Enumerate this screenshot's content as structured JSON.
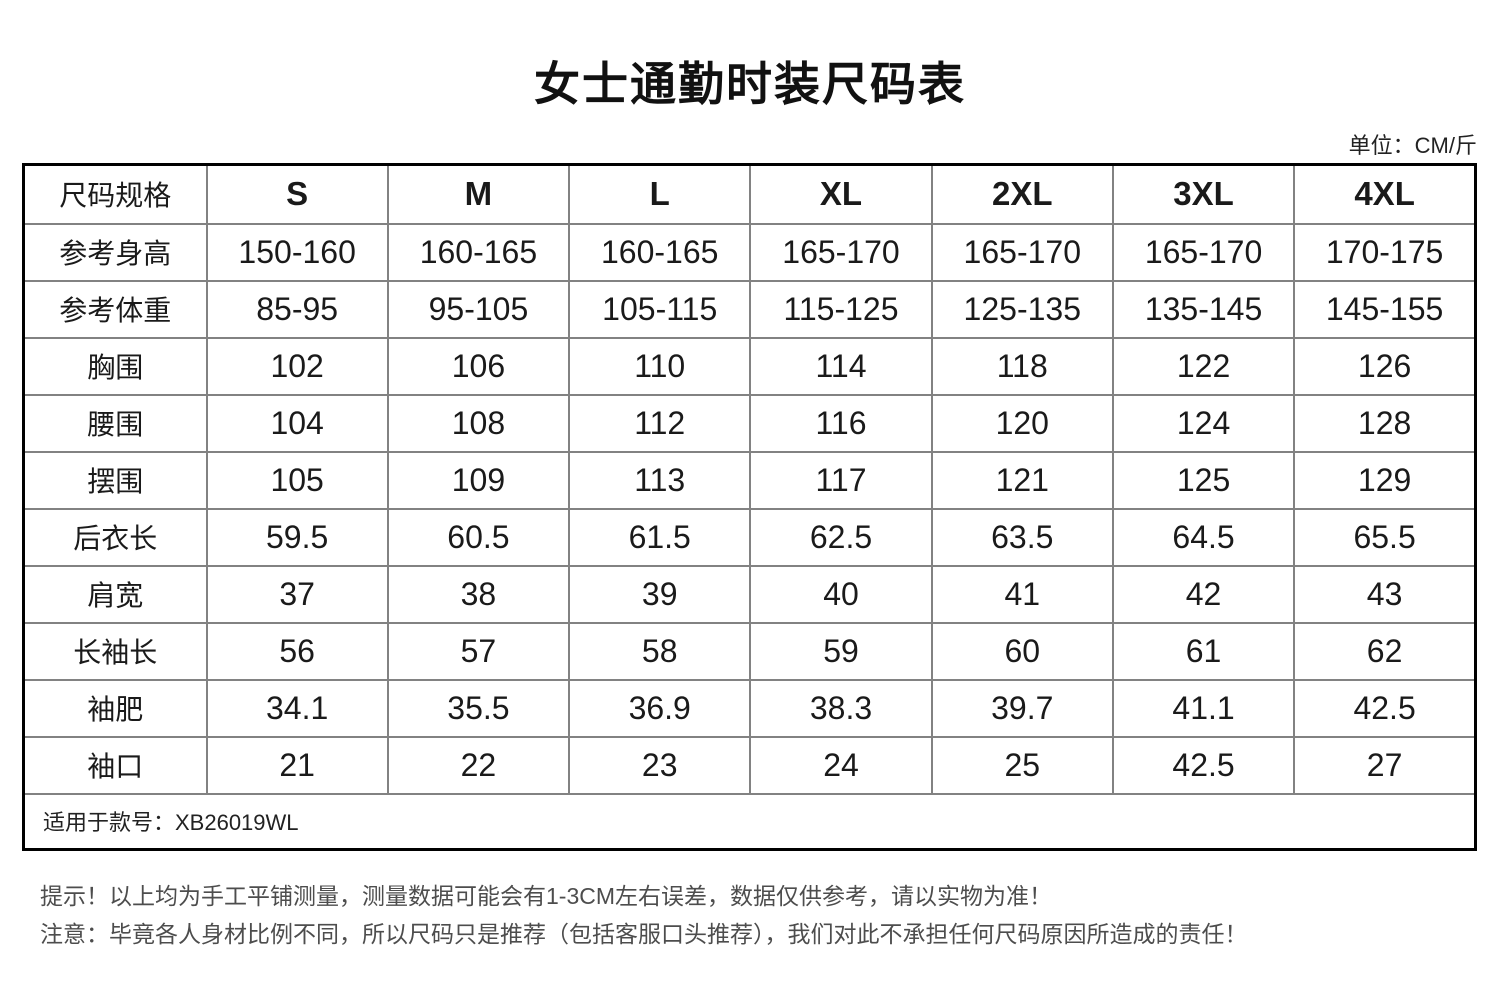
{
  "page": {
    "title": "女士通勤时装尺码表",
    "unit_note": "单位：CM/斤"
  },
  "table": {
    "header": {
      "label": "尺码规格",
      "sizes": [
        "S",
        "M",
        "L",
        "XL",
        "2XL",
        "3XL",
        "4XL"
      ]
    },
    "rows": [
      {
        "label": "参考身高",
        "values": [
          "150-160",
          "160-165",
          "160-165",
          "165-170",
          "165-170",
          "165-170",
          "170-175"
        ]
      },
      {
        "label": "参考体重",
        "values": [
          "85-95",
          "95-105",
          "105-115",
          "115-125",
          "125-135",
          "135-145",
          "145-155"
        ]
      },
      {
        "label": "胸围",
        "values": [
          "102",
          "106",
          "110",
          "114",
          "118",
          "122",
          "126"
        ]
      },
      {
        "label": "腰围",
        "values": [
          "104",
          "108",
          "112",
          "116",
          "120",
          "124",
          "128"
        ]
      },
      {
        "label": "摆围",
        "values": [
          "105",
          "109",
          "113",
          "117",
          "121",
          "125",
          "129"
        ]
      },
      {
        "label": "后衣长",
        "values": [
          "59.5",
          "60.5",
          "61.5",
          "62.5",
          "63.5",
          "64.5",
          "65.5"
        ]
      },
      {
        "label": "肩宽",
        "values": [
          "37",
          "38",
          "39",
          "40",
          "41",
          "42",
          "43"
        ]
      },
      {
        "label": "长袖长",
        "values": [
          "56",
          "57",
          "58",
          "59",
          "60",
          "61",
          "62"
        ]
      },
      {
        "label": "袖肥",
        "values": [
          "34.1",
          "35.5",
          "36.9",
          "38.3",
          "39.7",
          "41.1",
          "42.5"
        ]
      },
      {
        "label": "袖口",
        "values": [
          "21",
          "22",
          "23",
          "24",
          "25",
          "42.5",
          "27"
        ]
      }
    ],
    "footer": "适用于款号：XB26019WL"
  },
  "notes": [
    "提示！以上均为手工平铺测量，测量数据可能会有1-3CM左右误差，数据仅供参考，请以实物为准！",
    "注意：毕竟各人身材比例不同，所以尺码只是推荐（包括客服口头推荐），我们对此不承担任何尺码原因所造成的责任！"
  ],
  "colors": {
    "outer_border": "#000000",
    "inner_border": "#828282",
    "title_text": "#111111",
    "cell_text": "#1a1a1a",
    "note_text": "#4d4d4d"
  }
}
